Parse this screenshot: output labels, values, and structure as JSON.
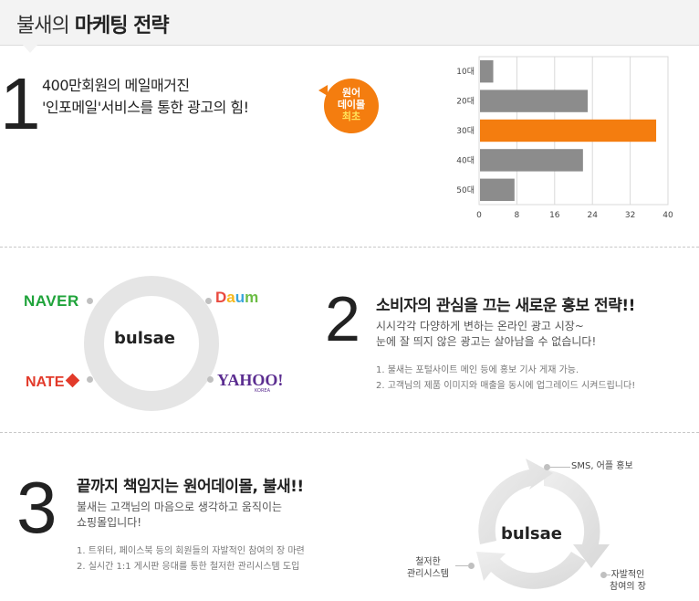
{
  "header": {
    "title_prefix": "불새의",
    "title_bold": "마케팅 전략"
  },
  "section1": {
    "number": "1",
    "line1": "400만회원의 메일매거진",
    "line2": "'인포메일'서비스를 통한 광고의 힘!",
    "badge": {
      "line1": "원어",
      "line2": "데이몰",
      "line3": "최초"
    }
  },
  "chart_data": {
    "type": "bar",
    "orientation": "horizontal",
    "categories": [
      "10대",
      "20대",
      "30대",
      "40대",
      "50대"
    ],
    "values": [
      3,
      23,
      37.5,
      22,
      7.5
    ],
    "highlight_index": 2,
    "xlim": [
      0,
      40
    ],
    "xticks": [
      "0",
      "8",
      "16",
      "24",
      "32",
      "40"
    ],
    "colors": {
      "bar": "#8c8c8c",
      "highlight": "#f47d0f",
      "grid": "#d9d9d9"
    }
  },
  "section2": {
    "number": "2",
    "title": "소비자의 관심을 끄는 새로운 홍보 전략!!",
    "desc1": "시시각각 다양하게 변하는 온라인 광고 시장~",
    "desc2": "눈에 잘 띄지 않은 광고는 살아남을 수 없습니다!",
    "items": [
      "1. 불새는 포털사이트 메인 등에 홍보 기사 게재 가능.",
      "2. 고객님의 제품 이미지와 매출을 동시에 업그레이드 시켜드립니다!"
    ],
    "logos": {
      "center": "bulsae",
      "naver": "NAVER",
      "daum": [
        "D",
        "a",
        "u",
        "m"
      ],
      "nate": "NATE",
      "yahoo": "YAHOO!",
      "yahoo_sub": "KOREA"
    }
  },
  "section3": {
    "number": "3",
    "title": "끝까지 책임지는 원어데이몰, 불새!!",
    "desc1": "불새는 고객님의 마음으로 생각하고 움직이는",
    "desc2": "쇼핑몰입니다!",
    "items": [
      "1. 트위터, 페이스북 등의 회원들의 자발적인 참여의 장 마련",
      "2. 실시간 1:1 게시판 응대를 통한 철저한 관리시스템 도입"
    ],
    "cycle": {
      "center": "bulsae",
      "top": "SMS, 어플 홍보",
      "left1": "철저한",
      "left2": "관리시스템",
      "right1": "자발적인",
      "right2": "참여의 장"
    }
  }
}
